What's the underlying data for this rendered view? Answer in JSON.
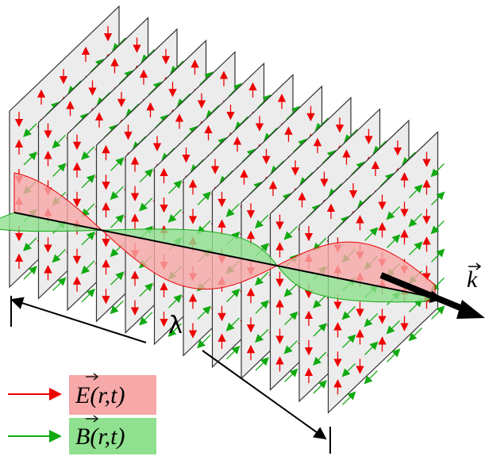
{
  "labels": {
    "wavelength": "λ",
    "wave_vector": "k"
  },
  "legend": [
    {
      "label": "E(r,t)"
    },
    {
      "label": "B(r,t)"
    }
  ]
}
